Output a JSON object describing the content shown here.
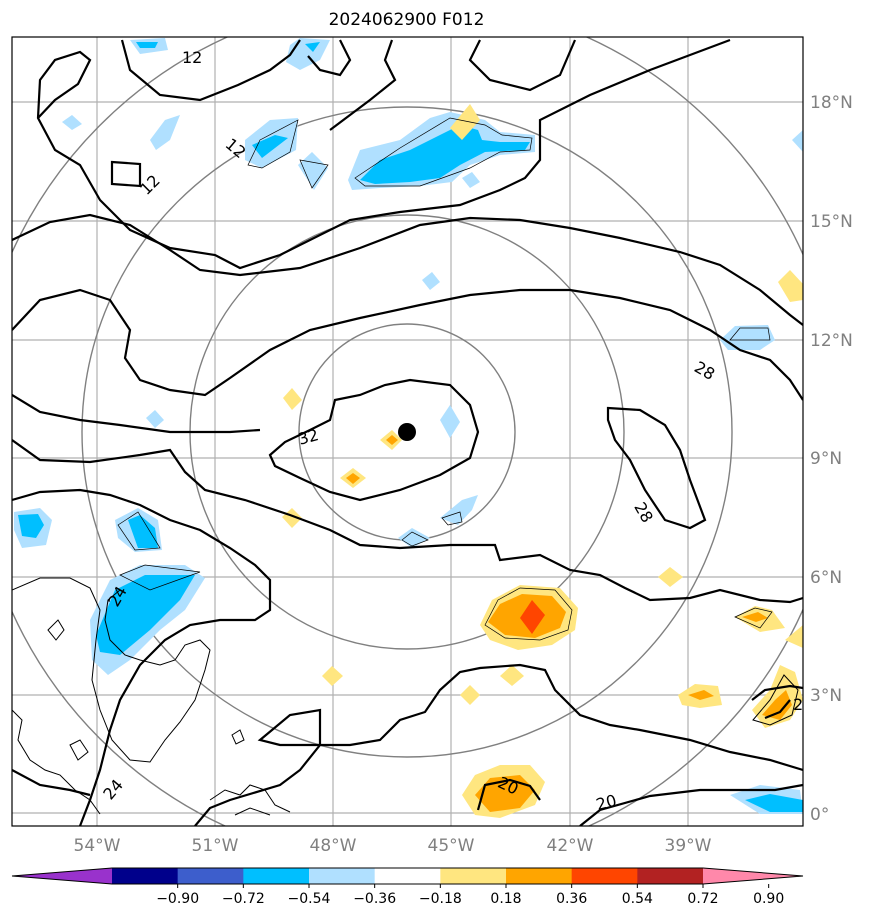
{
  "title": "2024062900 F012",
  "axes": {
    "lon_ticks": [
      "54°W",
      "51°W",
      "48°W",
      "45°W",
      "42°W",
      "39°W"
    ],
    "lat_ticks": [
      "18°N",
      "15°N",
      "12°N",
      "9°N",
      "6°N",
      "3°N",
      "0°"
    ]
  },
  "contour_labels": [
    "12",
    "12",
    "12",
    "32",
    "28",
    "28",
    "24",
    "24",
    "20",
    "20",
    "2"
  ],
  "colorbar": {
    "tick_labels": [
      "−0.90",
      "−0.72",
      "−0.54",
      "−0.36",
      "−0.18",
      "0.18",
      "0.36",
      "0.54",
      "0.72",
      "0.90"
    ],
    "colors": [
      "#9932cc",
      "#00008b",
      "#3d5ecc",
      "#00bfff",
      "#b0e0ff",
      "#ffffff",
      "#ffe680",
      "#ffa500",
      "#ff4500",
      "#b22222",
      "#ff88aa"
    ]
  },
  "map": {
    "center_marker": "storm-center",
    "range_rings": 4,
    "line_color": "#000000",
    "ring_color": "#808080"
  }
}
